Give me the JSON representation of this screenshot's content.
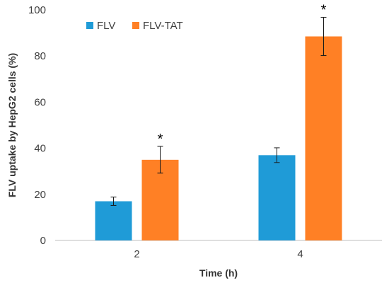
{
  "chart_data": {
    "type": "bar",
    "categories": [
      "2",
      "4"
    ],
    "series": [
      {
        "name": "FLV",
        "color": "#1F9BD7",
        "values": [
          17,
          37
        ],
        "errors": [
          1.8,
          3.2
        ],
        "significance": [
          "",
          ""
        ]
      },
      {
        "name": "FLV-TAT",
        "color": "#FF8025",
        "values": [
          35,
          88.5
        ],
        "errors": [
          5.8,
          8.3
        ],
        "significance": [
          "*",
          "*"
        ]
      }
    ],
    "xlabel": "Time (h)",
    "ylabel": "FLV uptake by HepG2 cells (%)",
    "ylim": [
      0,
      100
    ],
    "yticks": [
      "0",
      "20",
      "40",
      "60",
      "80",
      "100"
    ],
    "grid": false,
    "legend_position": "top-left"
  }
}
